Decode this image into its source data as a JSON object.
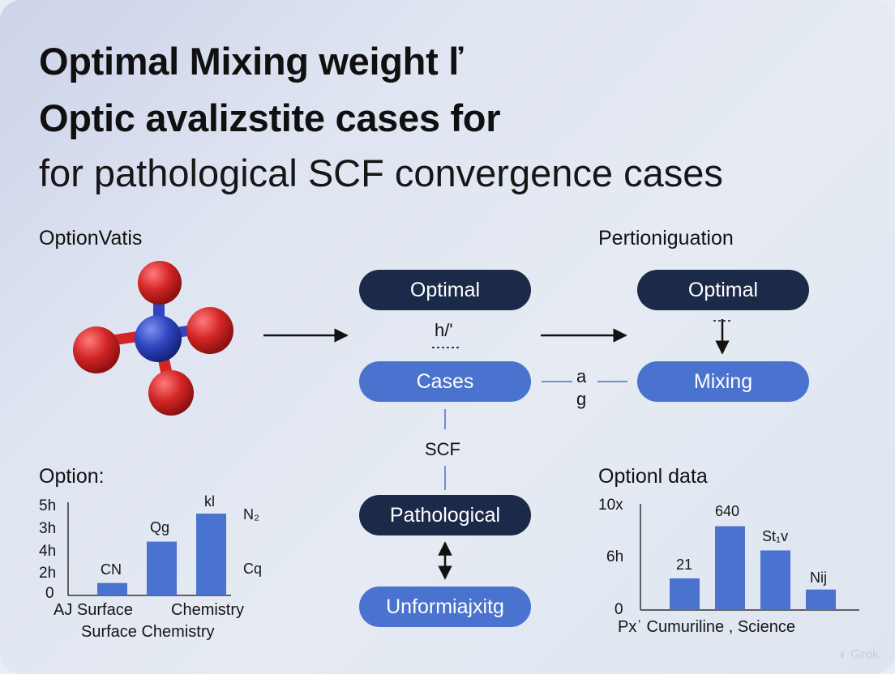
{
  "title": {
    "line1": "Optimal Mixing weight ľ",
    "line2": "Optic avalizstite cases  for",
    "line3": "for pathological SCF convergence cases"
  },
  "left_section_label": "OptionVatis",
  "right_section_label": "Pertioniguation",
  "flow": {
    "center": {
      "optimal": "Optimal",
      "hv_label": "h/'",
      "cases": "Cases",
      "scf": "SCF",
      "pathological": "Pathological",
      "unformiajxitg": "Unformiajxitg"
    },
    "connector_label_a": "a",
    "connector_label_g": "g",
    "right": {
      "optimal": "Optimal",
      "mixing": "Mixing"
    }
  },
  "colors": {
    "dark_pill": "#1c2a4a",
    "blue_pill": "#4a73cf",
    "bar": "#4a73cf",
    "atom_center": "#2f47b8",
    "atom_outer": "#cc1f1f"
  },
  "chart_data": [
    {
      "type": "bar",
      "title": "Option:",
      "y_tick_labels": [
        "5h",
        "3h",
        "4h",
        "2h",
        "0"
      ],
      "x_labels": [
        "AJ Surface",
        "Chemistry"
      ],
      "xlabel": "Surface Chemistry",
      "bar_labels": [
        "CN",
        "Qg",
        "kl"
      ],
      "values": [
        1.2,
        5.2,
        7.9
      ],
      "ylim": [
        0,
        9
      ],
      "side_labels": [
        "N₂",
        "Cq"
      ]
    },
    {
      "type": "bar",
      "title": "Optionl data",
      "y_tick_labels": [
        "10x",
        "6h",
        "0"
      ],
      "xlabel": "Pxˈ Cumuriline , Science",
      "bar_labels": [
        "21",
        "640",
        "St₁v",
        "Nĳ"
      ],
      "values": [
        1.7,
        4.5,
        3.2,
        1.1
      ],
      "ylim": [
        0,
        5.7
      ]
    }
  ],
  "watermark": "Grok"
}
